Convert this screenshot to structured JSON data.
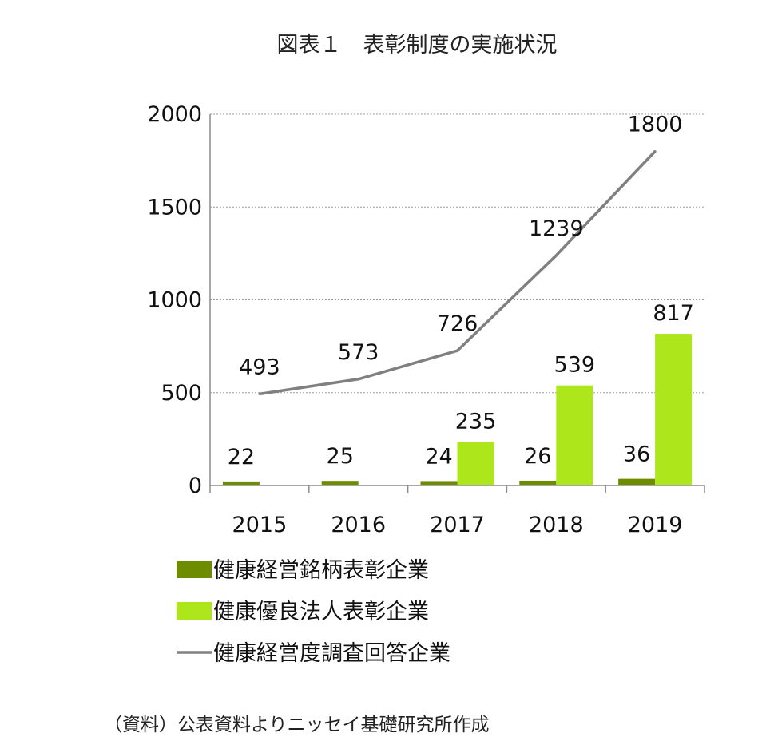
{
  "title": "図表１　表彰制度の実施状況",
  "source_note": "（資料）公表資料よりニッセイ基礎研究所作成",
  "chart_data": {
    "type": "bar",
    "categories": [
      "2015",
      "2016",
      "2017",
      "2018",
      "2019"
    ],
    "ylim": [
      0,
      2000
    ],
    "yticks": [
      0,
      500,
      1000,
      1500,
      2000
    ],
    "grid": true,
    "legend_position": "bottom",
    "series": [
      {
        "name": "健康経営銘柄表彰企業",
        "kind": "bar",
        "color": "#6e8c00",
        "values": [
          22,
          25,
          24,
          26,
          36
        ],
        "labels": [
          "22",
          "25",
          "24",
          "26",
          "36"
        ]
      },
      {
        "name": "健康優良法人表彰企業",
        "kind": "bar",
        "color": "#aee61c",
        "values": [
          null,
          null,
          235,
          539,
          817
        ],
        "labels": [
          "",
          "",
          "235",
          "539",
          "817"
        ]
      },
      {
        "name": "健康経営度調査回答企業",
        "kind": "line",
        "color": "#808080",
        "values": [
          493,
          573,
          726,
          1239,
          1800
        ],
        "labels": [
          "493",
          "573",
          "726",
          "1239",
          "1800"
        ]
      }
    ]
  }
}
